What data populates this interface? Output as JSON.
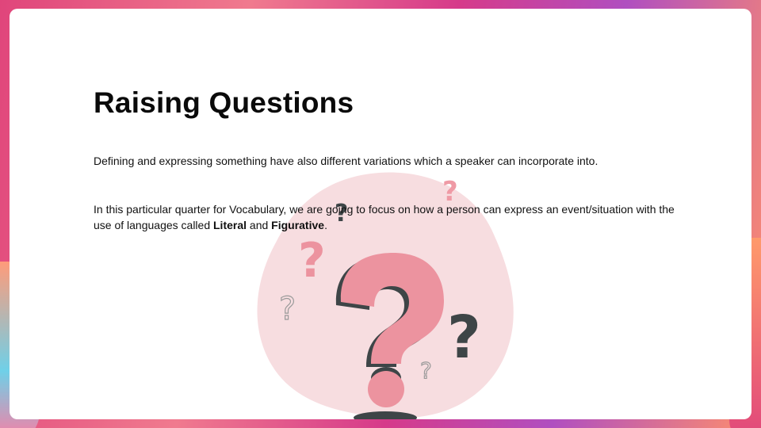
{
  "slide": {
    "title": "Raising Questions",
    "paragraph1": "Defining and expressing something have also different variations which a speaker can incorporate into.",
    "paragraph2_part1": "In this particular quarter for Vocabulary, we are going to focus on how a person can express an event/situation with the use of languages called ",
    "literal": "Literal",
    "and_text": " and ",
    "figurative": "Figurative",
    "period": "."
  },
  "illustration": {
    "icon": "question-marks-illustration",
    "blob_color": "#f7dde0",
    "pink": "#ec939f",
    "dark": "#3e4547"
  },
  "colors": {
    "frame_gradient": [
      "#e0457b",
      "#f07a8e",
      "#d63a8a",
      "#b04fc0",
      "#ff8f6b"
    ],
    "card": "#ffffff",
    "text": "#111111"
  }
}
